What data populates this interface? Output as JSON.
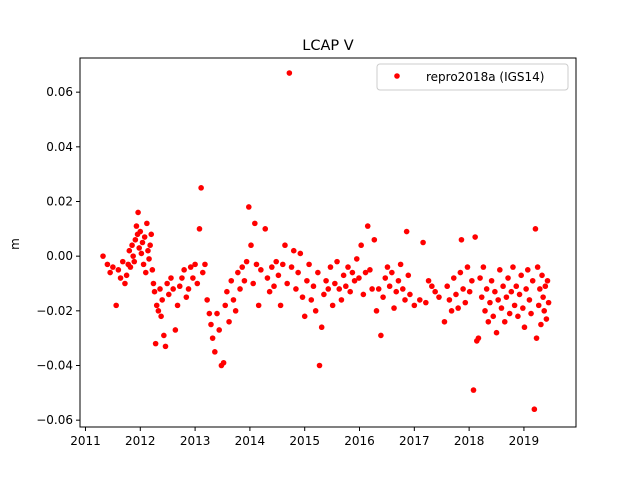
{
  "chart_data": {
    "type": "scatter",
    "title": "LCAP V",
    "xlabel": "",
    "ylabel": "m",
    "xlim": [
      2010.9,
      2019.95
    ],
    "ylim": [
      -0.0625,
      0.0725
    ],
    "x_ticks": [
      2011,
      2012,
      2013,
      2014,
      2015,
      2016,
      2017,
      2018,
      2019
    ],
    "x_tick_labels": [
      "2011",
      "2012",
      "2013",
      "2014",
      "2015",
      "2016",
      "2017",
      "2018",
      "2019"
    ],
    "y_ticks": [
      -0.06,
      -0.04,
      -0.02,
      0.0,
      0.02,
      0.04,
      0.06
    ],
    "y_tick_labels": [
      "−0.06",
      "−0.04",
      "−0.02",
      "0.00",
      "0.02",
      "0.04",
      "0.06"
    ],
    "grid": false,
    "legend_position": "top-right",
    "series": [
      {
        "name": "repro2018a (IGS14)",
        "color": "#ff0000",
        "marker": "circle",
        "points": [
          [
            2011.32,
            0.0
          ],
          [
            2011.4,
            -0.003
          ],
          [
            2011.45,
            -0.006
          ],
          [
            2011.5,
            -0.004
          ],
          [
            2011.56,
            -0.018
          ],
          [
            2011.6,
            -0.005
          ],
          [
            2011.64,
            -0.008
          ],
          [
            2011.68,
            -0.002
          ],
          [
            2011.72,
            -0.01
          ],
          [
            2011.75,
            -0.007
          ],
          [
            2011.78,
            -0.003
          ],
          [
            2011.8,
            0.002
          ],
          [
            2011.82,
            -0.004
          ],
          [
            2011.85,
            0.004
          ],
          [
            2011.87,
            0.0
          ],
          [
            2011.89,
            -0.002
          ],
          [
            2011.91,
            0.006
          ],
          [
            2011.93,
            0.011
          ],
          [
            2011.95,
            0.008
          ],
          [
            2011.96,
            0.016
          ],
          [
            2011.98,
            0.003
          ],
          [
            2012.0,
            0.009
          ],
          [
            2012.02,
            0.001
          ],
          [
            2012.04,
            0.005
          ],
          [
            2012.06,
            -0.003
          ],
          [
            2012.08,
            0.007
          ],
          [
            2012.1,
            -0.006
          ],
          [
            2012.12,
            0.012
          ],
          [
            2012.14,
            0.002
          ],
          [
            2012.16,
            -0.001
          ],
          [
            2012.18,
            0.004
          ],
          [
            2012.2,
            0.008
          ],
          [
            2012.22,
            -0.005
          ],
          [
            2012.24,
            -0.01
          ],
          [
            2012.26,
            -0.013
          ],
          [
            2012.28,
            -0.032
          ],
          [
            2012.3,
            -0.018
          ],
          [
            2012.33,
            -0.02
          ],
          [
            2012.36,
            -0.012
          ],
          [
            2012.38,
            -0.022
          ],
          [
            2012.4,
            -0.016
          ],
          [
            2012.43,
            -0.029
          ],
          [
            2012.46,
            -0.033
          ],
          [
            2012.49,
            -0.01
          ],
          [
            2012.52,
            -0.014
          ],
          [
            2012.56,
            -0.008
          ],
          [
            2012.6,
            -0.012
          ],
          [
            2012.64,
            -0.027
          ],
          [
            2012.68,
            -0.018
          ],
          [
            2012.72,
            -0.011
          ],
          [
            2012.76,
            -0.008
          ],
          [
            2012.8,
            -0.005
          ],
          [
            2012.84,
            -0.015
          ],
          [
            2012.88,
            -0.012
          ],
          [
            2012.92,
            -0.004
          ],
          [
            2012.96,
            -0.008
          ],
          [
            2013.0,
            -0.003
          ],
          [
            2013.04,
            -0.01
          ],
          [
            2013.08,
            0.01
          ],
          [
            2013.11,
            0.025
          ],
          [
            2013.14,
            -0.006
          ],
          [
            2013.18,
            -0.003
          ],
          [
            2013.22,
            -0.016
          ],
          [
            2013.26,
            -0.021
          ],
          [
            2013.29,
            -0.025
          ],
          [
            2013.32,
            -0.03
          ],
          [
            2013.36,
            -0.035
          ],
          [
            2013.4,
            -0.021
          ],
          [
            2013.44,
            -0.027
          ],
          [
            2013.48,
            -0.04
          ],
          [
            2013.52,
            -0.039
          ],
          [
            2013.55,
            -0.018
          ],
          [
            2013.58,
            -0.013
          ],
          [
            2013.62,
            -0.024
          ],
          [
            2013.66,
            -0.009
          ],
          [
            2013.7,
            -0.016
          ],
          [
            2013.74,
            -0.02
          ],
          [
            2013.78,
            -0.006
          ],
          [
            2013.82,
            -0.012
          ],
          [
            2013.86,
            -0.004
          ],
          [
            2013.9,
            -0.009
          ],
          [
            2013.94,
            -0.002
          ],
          [
            2013.98,
            0.018
          ],
          [
            2014.02,
            0.004
          ],
          [
            2014.06,
            -0.01
          ],
          [
            2014.09,
            0.012
          ],
          [
            2014.12,
            -0.003
          ],
          [
            2014.16,
            -0.018
          ],
          [
            2014.2,
            -0.005
          ],
          [
            2014.28,
            0.01
          ],
          [
            2014.32,
            -0.008
          ],
          [
            2014.36,
            -0.013
          ],
          [
            2014.4,
            -0.004
          ],
          [
            2014.44,
            -0.011
          ],
          [
            2014.48,
            -0.002
          ],
          [
            2014.52,
            -0.007
          ],
          [
            2014.56,
            -0.018
          ],
          [
            2014.6,
            -0.003
          ],
          [
            2014.64,
            0.004
          ],
          [
            2014.68,
            -0.01
          ],
          [
            2014.72,
            0.067
          ],
          [
            2014.76,
            -0.004
          ],
          [
            2014.8,
            0.002
          ],
          [
            2014.84,
            -0.012
          ],
          [
            2014.88,
            -0.006
          ],
          [
            2014.92,
            0.001
          ],
          [
            2014.96,
            -0.015
          ],
          [
            2015.0,
            -0.022
          ],
          [
            2015.04,
            -0.009
          ],
          [
            2015.08,
            -0.003
          ],
          [
            2015.12,
            -0.016
          ],
          [
            2015.16,
            -0.011
          ],
          [
            2015.2,
            -0.02
          ],
          [
            2015.24,
            -0.006
          ],
          [
            2015.27,
            -0.04
          ],
          [
            2015.31,
            -0.026
          ],
          [
            2015.35,
            -0.014
          ],
          [
            2015.39,
            -0.009
          ],
          [
            2015.43,
            -0.012
          ],
          [
            2015.47,
            -0.004
          ],
          [
            2015.51,
            -0.018
          ],
          [
            2015.55,
            -0.01
          ],
          [
            2015.59,
            -0.002
          ],
          [
            2015.63,
            -0.012
          ],
          [
            2015.67,
            -0.016
          ],
          [
            2015.71,
            -0.007
          ],
          [
            2015.75,
            -0.011
          ],
          [
            2015.79,
            -0.004
          ],
          [
            2015.83,
            -0.013
          ],
          [
            2015.87,
            -0.006
          ],
          [
            2015.91,
            -0.009
          ],
          [
            2015.95,
            -0.001
          ],
          [
            2015.99,
            -0.008
          ],
          [
            2016.03,
            0.004
          ],
          [
            2016.07,
            -0.014
          ],
          [
            2016.11,
            -0.006
          ],
          [
            2016.15,
            0.011
          ],
          [
            2016.19,
            -0.005
          ],
          [
            2016.23,
            -0.012
          ],
          [
            2016.27,
            0.006
          ],
          [
            2016.31,
            -0.02
          ],
          [
            2016.35,
            -0.012
          ],
          [
            2016.39,
            -0.029
          ],
          [
            2016.43,
            -0.015
          ],
          [
            2016.47,
            -0.008
          ],
          [
            2016.51,
            -0.004
          ],
          [
            2016.55,
            -0.011
          ],
          [
            2016.59,
            -0.006
          ],
          [
            2016.63,
            -0.019
          ],
          [
            2016.67,
            -0.013
          ],
          [
            2016.71,
            -0.009
          ],
          [
            2016.75,
            -0.003
          ],
          [
            2016.79,
            -0.012
          ],
          [
            2016.83,
            -0.016
          ],
          [
            2016.86,
            0.009
          ],
          [
            2016.89,
            -0.007
          ],
          [
            2016.92,
            -0.014
          ],
          [
            2017.0,
            -0.018
          ],
          [
            2017.1,
            -0.016
          ],
          [
            2017.16,
            0.005
          ],
          [
            2017.21,
            -0.017
          ],
          [
            2017.26,
            -0.009
          ],
          [
            2017.32,
            -0.011
          ],
          [
            2017.38,
            -0.013
          ],
          [
            2017.45,
            -0.015
          ],
          [
            2017.55,
            -0.024
          ],
          [
            2017.6,
            -0.011
          ],
          [
            2017.64,
            -0.016
          ],
          [
            2017.68,
            -0.02
          ],
          [
            2017.72,
            -0.008
          ],
          [
            2017.76,
            -0.014
          ],
          [
            2017.8,
            -0.019
          ],
          [
            2017.84,
            -0.006
          ],
          [
            2017.86,
            0.006
          ],
          [
            2017.89,
            -0.012
          ],
          [
            2017.93,
            -0.017
          ],
          [
            2017.97,
            -0.004
          ],
          [
            2018.01,
            -0.013
          ],
          [
            2018.05,
            -0.009
          ],
          [
            2018.08,
            -0.049
          ],
          [
            2018.11,
            0.007
          ],
          [
            2018.14,
            -0.031
          ],
          [
            2018.17,
            -0.03
          ],
          [
            2018.2,
            -0.008
          ],
          [
            2018.23,
            -0.015
          ],
          [
            2018.26,
            -0.004
          ],
          [
            2018.29,
            -0.02
          ],
          [
            2018.32,
            -0.012
          ],
          [
            2018.35,
            -0.024
          ],
          [
            2018.38,
            -0.017
          ],
          [
            2018.41,
            -0.009
          ],
          [
            2018.44,
            -0.022
          ],
          [
            2018.47,
            -0.013
          ],
          [
            2018.5,
            -0.028
          ],
          [
            2018.53,
            -0.016
          ],
          [
            2018.56,
            -0.005
          ],
          [
            2018.59,
            -0.019
          ],
          [
            2018.62,
            -0.011
          ],
          [
            2018.65,
            -0.024
          ],
          [
            2018.68,
            -0.015
          ],
          [
            2018.71,
            -0.008
          ],
          [
            2018.74,
            -0.021
          ],
          [
            2018.77,
            -0.013
          ],
          [
            2018.8,
            -0.004
          ],
          [
            2018.83,
            -0.018
          ],
          [
            2018.86,
            -0.011
          ],
          [
            2018.89,
            -0.022
          ],
          [
            2018.92,
            -0.014
          ],
          [
            2018.95,
            -0.007
          ],
          [
            2018.98,
            -0.019
          ],
          [
            2019.01,
            -0.026
          ],
          [
            2019.04,
            -0.012
          ],
          [
            2019.07,
            -0.005
          ],
          [
            2019.1,
            -0.016
          ],
          [
            2019.13,
            -0.021
          ],
          [
            2019.16,
            -0.009
          ],
          [
            2019.19,
            -0.056
          ],
          [
            2019.21,
            0.01
          ],
          [
            2019.23,
            -0.03
          ],
          [
            2019.25,
            -0.004
          ],
          [
            2019.27,
            -0.018
          ],
          [
            2019.29,
            -0.012
          ],
          [
            2019.31,
            -0.025
          ],
          [
            2019.33,
            -0.007
          ],
          [
            2019.35,
            -0.015
          ],
          [
            2019.37,
            -0.02
          ],
          [
            2019.39,
            -0.011
          ],
          [
            2019.41,
            -0.023
          ],
          [
            2019.43,
            -0.009
          ],
          [
            2019.45,
            -0.017
          ]
        ]
      }
    ]
  }
}
